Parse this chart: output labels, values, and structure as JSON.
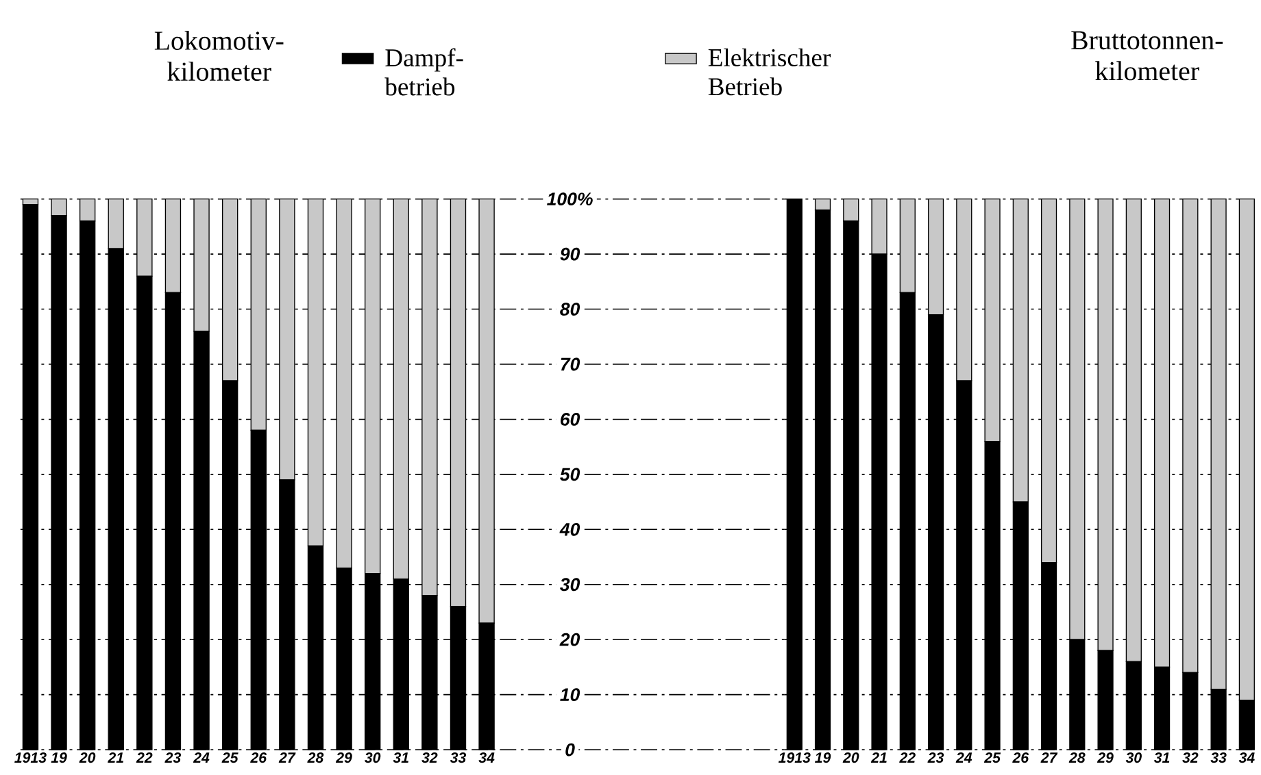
{
  "chart_data": [
    {
      "type": "bar",
      "title": "Lokomotiv-kilometer",
      "stacked": true,
      "categories": [
        "1913",
        "19",
        "20",
        "21",
        "22",
        "23",
        "24",
        "25",
        "26",
        "27",
        "28",
        "29",
        "30",
        "31",
        "32",
        "33",
        "34"
      ],
      "series": [
        {
          "name": "Dampf-betrieb",
          "color": "#000000",
          "values": [
            99,
            97,
            96,
            91,
            86,
            83,
            76,
            67,
            58,
            49,
            37,
            33,
            32,
            31,
            28,
            26,
            23
          ]
        },
        {
          "name": "Elektrischer Betrieb",
          "color": "#c8c8c8",
          "values": [
            1,
            3,
            4,
            9,
            14,
            17,
            24,
            33,
            42,
            51,
            63,
            67,
            68,
            69,
            72,
            74,
            77
          ]
        }
      ],
      "ylim": [
        0,
        100
      ],
      "yticks": [
        0,
        10,
        20,
        30,
        40,
        50,
        60,
        70,
        80,
        90,
        {
          "value": 100,
          "label": "100%"
        }
      ],
      "grid": "y",
      "legend": "top"
    },
    {
      "type": "bar",
      "title": "Bruttotonnen-kilometer",
      "stacked": true,
      "categories": [
        "1913",
        "19",
        "20",
        "21",
        "22",
        "23",
        "24",
        "25",
        "26",
        "27",
        "28",
        "29",
        "30",
        "31",
        "32",
        "33",
        "34"
      ],
      "series": [
        {
          "color": "#000000",
          "values": [
            100,
            98,
            96,
            90,
            83,
            79,
            67,
            56,
            45,
            34,
            20,
            18,
            16,
            15,
            14,
            11,
            9
          ]
        },
        {
          "color": "#c8c8c8",
          "values": [
            0,
            2,
            4,
            10,
            17,
            21,
            33,
            44,
            55,
            66,
            80,
            82,
            84,
            85,
            86,
            89,
            91
          ]
        }
      ],
      "ylim": [
        0,
        100
      ],
      "grid": "y",
      "tick_labels": "x"
    }
  ]
}
